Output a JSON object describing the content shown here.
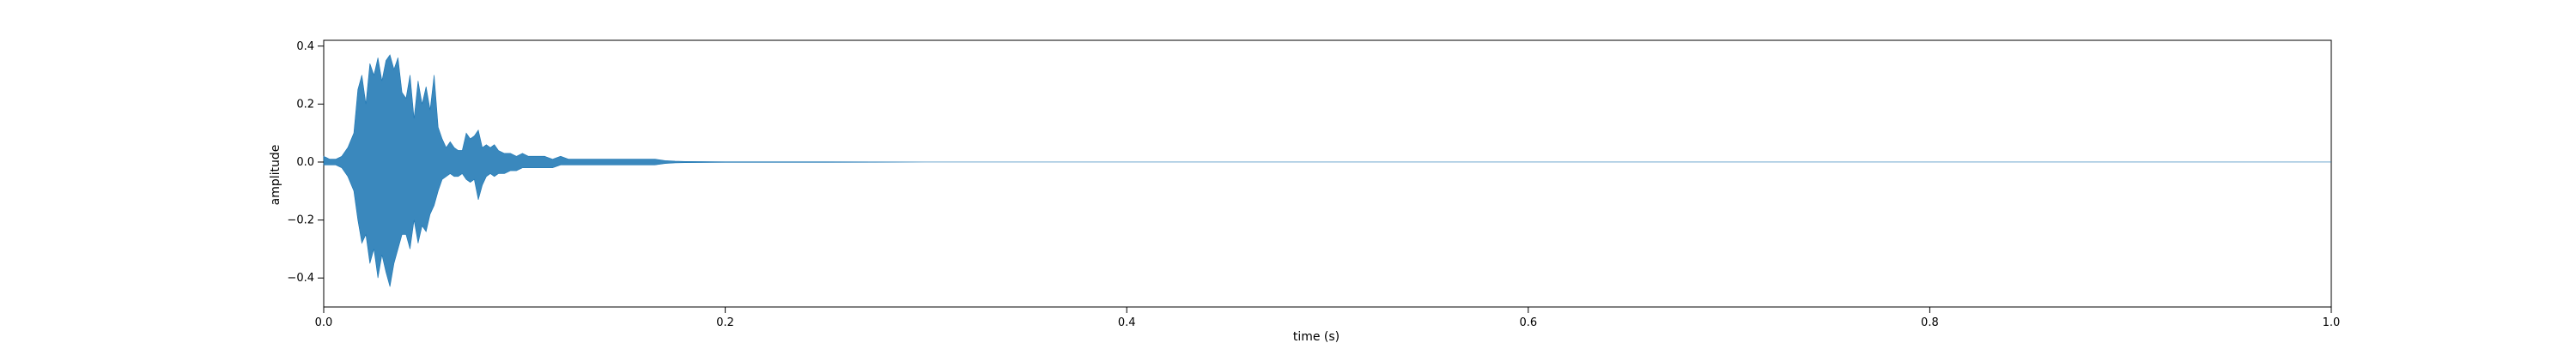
{
  "chart_data": {
    "type": "area",
    "title": "",
    "xlabel": "time (s)",
    "ylabel": "amplitude",
    "xlim": [
      0.0,
      1.0
    ],
    "ylim": [
      -0.5,
      0.42
    ],
    "x_ticks": [
      0.0,
      0.2,
      0.4,
      0.6,
      0.8,
      1.0
    ],
    "x_tick_labels": [
      "0.0",
      "0.2",
      "0.4",
      "0.6",
      "0.8",
      "1.0"
    ],
    "y_ticks": [
      0.4,
      0.2,
      0.0,
      -0.2,
      -0.4
    ],
    "y_tick_labels": [
      "0.4",
      "0.2",
      "0.0",
      "−0.2",
      "−0.4"
    ],
    "grid": false,
    "legend": "none",
    "series": [
      {
        "color": "#1f77b4",
        "x": [
          0.0,
          0.003,
          0.006,
          0.009,
          0.012,
          0.015,
          0.017,
          0.019,
          0.021,
          0.023,
          0.025,
          0.027,
          0.029,
          0.031,
          0.033,
          0.035,
          0.037,
          0.039,
          0.041,
          0.043,
          0.045,
          0.047,
          0.049,
          0.051,
          0.053,
          0.055,
          0.057,
          0.059,
          0.061,
          0.063,
          0.065,
          0.067,
          0.069,
          0.071,
          0.073,
          0.075,
          0.077,
          0.079,
          0.081,
          0.083,
          0.085,
          0.087,
          0.09,
          0.093,
          0.096,
          0.099,
          0.102,
          0.106,
          0.11,
          0.114,
          0.118,
          0.122,
          0.126,
          0.13,
          0.135,
          0.14,
          0.145,
          0.15,
          0.155,
          0.16,
          0.165,
          0.17,
          0.175,
          0.18,
          0.2,
          0.25,
          0.3,
          0.4,
          0.5,
          0.6,
          0.7,
          0.8,
          0.9,
          1.0
        ],
        "y_max": [
          0.02,
          0.01,
          0.01,
          0.02,
          0.05,
          0.1,
          0.25,
          0.3,
          0.2,
          0.34,
          0.3,
          0.36,
          0.28,
          0.35,
          0.37,
          0.32,
          0.36,
          0.24,
          0.22,
          0.3,
          0.15,
          0.28,
          0.2,
          0.26,
          0.18,
          0.3,
          0.12,
          0.08,
          0.05,
          0.07,
          0.05,
          0.04,
          0.04,
          0.1,
          0.08,
          0.09,
          0.11,
          0.05,
          0.06,
          0.05,
          0.06,
          0.04,
          0.03,
          0.03,
          0.02,
          0.03,
          0.02,
          0.02,
          0.02,
          0.01,
          0.02,
          0.01,
          0.01,
          0.01,
          0.01,
          0.01,
          0.01,
          0.01,
          0.01,
          0.01,
          0.01,
          0.005,
          0.003,
          0.002,
          0.001,
          0.001,
          0.0,
          0.0,
          0.0,
          0.0,
          0.0,
          0.0,
          0.0,
          0.0
        ],
        "y_min": [
          -0.01,
          -0.01,
          -0.01,
          -0.02,
          -0.05,
          -0.1,
          -0.2,
          -0.28,
          -0.25,
          -0.35,
          -0.3,
          -0.4,
          -0.32,
          -0.38,
          -0.43,
          -0.35,
          -0.3,
          -0.25,
          -0.25,
          -0.3,
          -0.2,
          -0.28,
          -0.22,
          -0.24,
          -0.18,
          -0.15,
          -0.1,
          -0.06,
          -0.05,
          -0.04,
          -0.05,
          -0.05,
          -0.04,
          -0.06,
          -0.07,
          -0.06,
          -0.13,
          -0.08,
          -0.05,
          -0.04,
          -0.05,
          -0.04,
          -0.04,
          -0.03,
          -0.03,
          -0.02,
          -0.02,
          -0.02,
          -0.02,
          -0.02,
          -0.01,
          -0.01,
          -0.01,
          -0.01,
          -0.01,
          -0.01,
          -0.01,
          -0.01,
          -0.01,
          -0.01,
          -0.01,
          -0.005,
          -0.003,
          -0.002,
          -0.001,
          -0.001,
          0.0,
          0.0,
          0.0,
          0.0,
          0.0,
          0.0,
          0.0,
          0.0
        ]
      }
    ]
  }
}
